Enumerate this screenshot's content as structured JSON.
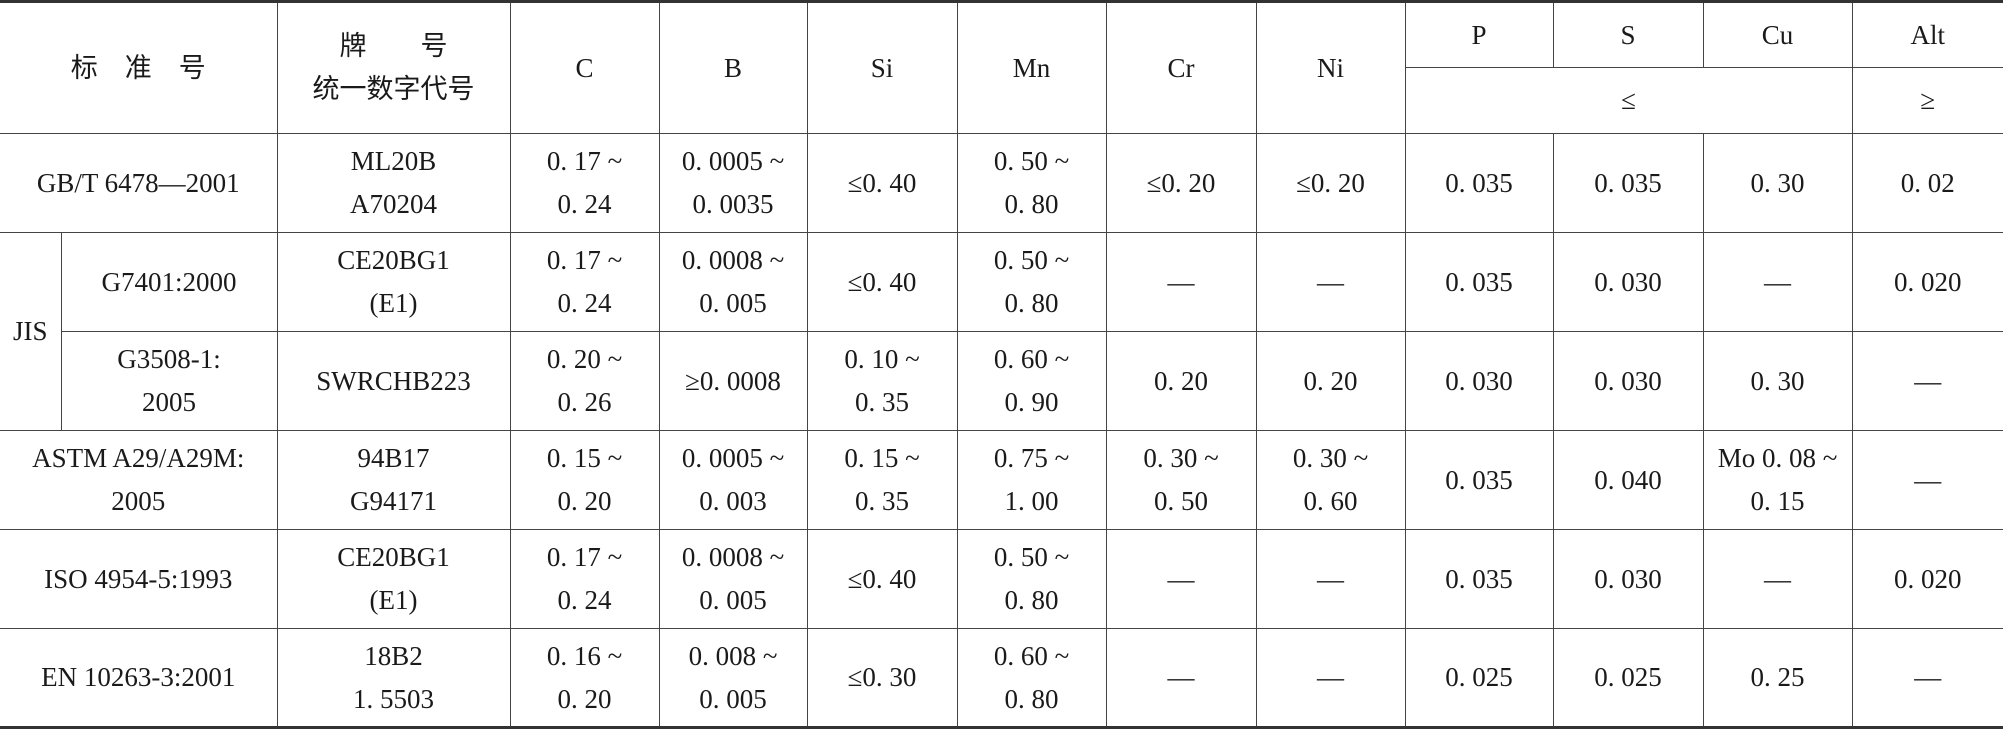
{
  "table": {
    "header": {
      "standard": "标　准　号",
      "grade": [
        "牌　　号",
        "统一数字代号"
      ],
      "elements": [
        "C",
        "B",
        "Si",
        "Mn",
        "Cr",
        "Ni",
        "P",
        "S",
        "Cu",
        "Alt"
      ],
      "le": "≤",
      "ge": "≥"
    },
    "rows": [
      {
        "standard": [
          "GB/T 6478—2001"
        ],
        "grade": [
          "ML20B",
          "A70204"
        ],
        "values": [
          [
            "0. 17 ~",
            "0. 24"
          ],
          [
            "0. 0005 ~",
            "0. 0035"
          ],
          [
            "≤0. 40"
          ],
          [
            "0. 50 ~",
            "0. 80"
          ],
          [
            "≤0. 20"
          ],
          [
            "≤0. 20"
          ],
          [
            "0. 035"
          ],
          [
            "0. 035"
          ],
          [
            "0. 30"
          ],
          [
            "0. 02"
          ]
        ]
      },
      {
        "group": "JIS",
        "standard": [
          "G7401:2000"
        ],
        "grade": [
          "CE20BG1",
          "(E1)"
        ],
        "values": [
          [
            "0. 17 ~",
            "0. 24"
          ],
          [
            "0. 0008 ~",
            "0. 005"
          ],
          [
            "≤0. 40"
          ],
          [
            "0. 50 ~",
            "0. 80"
          ],
          [
            "—"
          ],
          [
            "—"
          ],
          [
            "0. 035"
          ],
          [
            "0. 030"
          ],
          [
            "—"
          ],
          [
            "0. 020"
          ]
        ]
      },
      {
        "standard": [
          "G3508-1:",
          "2005"
        ],
        "grade": [
          "SWRCHB223"
        ],
        "values": [
          [
            "0. 20 ~",
            "0. 26"
          ],
          [
            "≥0. 0008"
          ],
          [
            "0. 10 ~",
            "0. 35"
          ],
          [
            "0. 60 ~",
            "0. 90"
          ],
          [
            "0. 20"
          ],
          [
            "0. 20"
          ],
          [
            "0. 030"
          ],
          [
            "0. 030"
          ],
          [
            "0. 30"
          ],
          [
            "—"
          ]
        ]
      },
      {
        "standard": [
          "ASTM A29/A29M:",
          "2005"
        ],
        "grade": [
          "94B17",
          "G94171"
        ],
        "values": [
          [
            "0. 15 ~",
            "0. 20"
          ],
          [
            "0. 0005 ~",
            "0. 003"
          ],
          [
            "0. 15 ~",
            "0. 35"
          ],
          [
            "0. 75 ~",
            "1. 00"
          ],
          [
            "0. 30 ~",
            "0. 50"
          ],
          [
            "0. 30 ~",
            "0. 60"
          ],
          [
            "0. 035"
          ],
          [
            "0. 040"
          ],
          [
            "Mo 0. 08 ~",
            "0. 15"
          ],
          [
            "—"
          ]
        ]
      },
      {
        "standard": [
          "ISO 4954-5:1993"
        ],
        "grade": [
          "CE20BG1",
          "(E1)"
        ],
        "values": [
          [
            "0. 17 ~",
            "0. 24"
          ],
          [
            "0. 0008 ~",
            "0. 005"
          ],
          [
            "≤0. 40"
          ],
          [
            "0. 50 ~",
            "0. 80"
          ],
          [
            "—"
          ],
          [
            "—"
          ],
          [
            "0. 035"
          ],
          [
            "0. 030"
          ],
          [
            "—"
          ],
          [
            "0. 020"
          ]
        ]
      },
      {
        "standard": [
          "EN 10263-3:2001"
        ],
        "grade": [
          "18B2",
          "1. 5503"
        ],
        "values": [
          [
            "0. 16 ~",
            "0. 20"
          ],
          [
            "0. 008 ~",
            "0. 005"
          ],
          [
            "≤0. 30"
          ],
          [
            "0. 60 ~",
            "0. 80"
          ],
          [
            "—"
          ],
          [
            "—"
          ],
          [
            "0. 025"
          ],
          [
            "0. 025"
          ],
          [
            "0. 25"
          ],
          [
            "—"
          ]
        ]
      }
    ]
  }
}
